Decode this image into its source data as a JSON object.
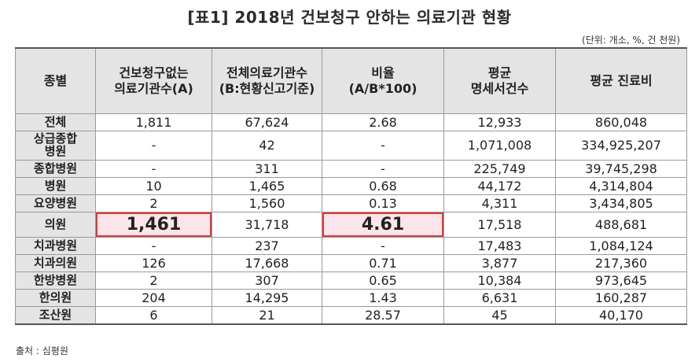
{
  "title": "[표1] 2018년 건보청구 안하는 의료기관 현황",
  "unit": "(단위: 개소, %, 건 천원)",
  "headers": [
    "종별",
    "건보청구없는\n의료기관수(A)",
    "전체의료기관수\n(B:현황신고기준)",
    "비율\n(A/B*100)",
    "평균\n명세서건수",
    "평균 진료비"
  ],
  "rows": [
    {
      "kind": "전체",
      "a": "1,811",
      "b": "67,624",
      "ratio": "2.68",
      "claims": "12,933",
      "cost": "860,048"
    },
    {
      "kind": "상급종합\n병원",
      "a": "-",
      "b": "42",
      "ratio": "-",
      "claims": "1,071,008",
      "cost": "334,925,207"
    },
    {
      "kind": "종합병원",
      "a": "-",
      "b": "311",
      "ratio": "-",
      "claims": "225,749",
      "cost": "39,745,298"
    },
    {
      "kind": "병원",
      "a": "10",
      "b": "1,465",
      "ratio": "0.68",
      "claims": "44,172",
      "cost": "4,314,804"
    },
    {
      "kind": "요양병원",
      "a": "2",
      "b": "1,560",
      "ratio": "0.13",
      "claims": "4,311",
      "cost": "3,434,805"
    },
    {
      "kind": "의원",
      "a": "1,461",
      "b": "31,718",
      "ratio": "4.61",
      "claims": "17,518",
      "cost": "488,681"
    },
    {
      "kind": "치과병원",
      "a": "-",
      "b": "237",
      "ratio": "-",
      "claims": "17,483",
      "cost": "1,084,124"
    },
    {
      "kind": "치과의원",
      "a": "126",
      "b": "17,668",
      "ratio": "0.71",
      "claims": "3,877",
      "cost": "217,360"
    },
    {
      "kind": "한방병원",
      "a": "2",
      "b": "307",
      "ratio": "0.65",
      "claims": "10,384",
      "cost": "973,645"
    },
    {
      "kind": "한의원",
      "a": "204",
      "b": "14,295",
      "ratio": "1.43",
      "claims": "6,631",
      "cost": "160,287"
    },
    {
      "kind": "조산원",
      "a": "6",
      "b": "21",
      "ratio": "28.57",
      "claims": "45",
      "cost": "40,170"
    }
  ],
  "source": "출처 : 심평원",
  "colors": {
    "header_bg": "#e4e4e4",
    "highlight_border": "#d93a3a",
    "highlight_fill": "#fbe4ea"
  }
}
